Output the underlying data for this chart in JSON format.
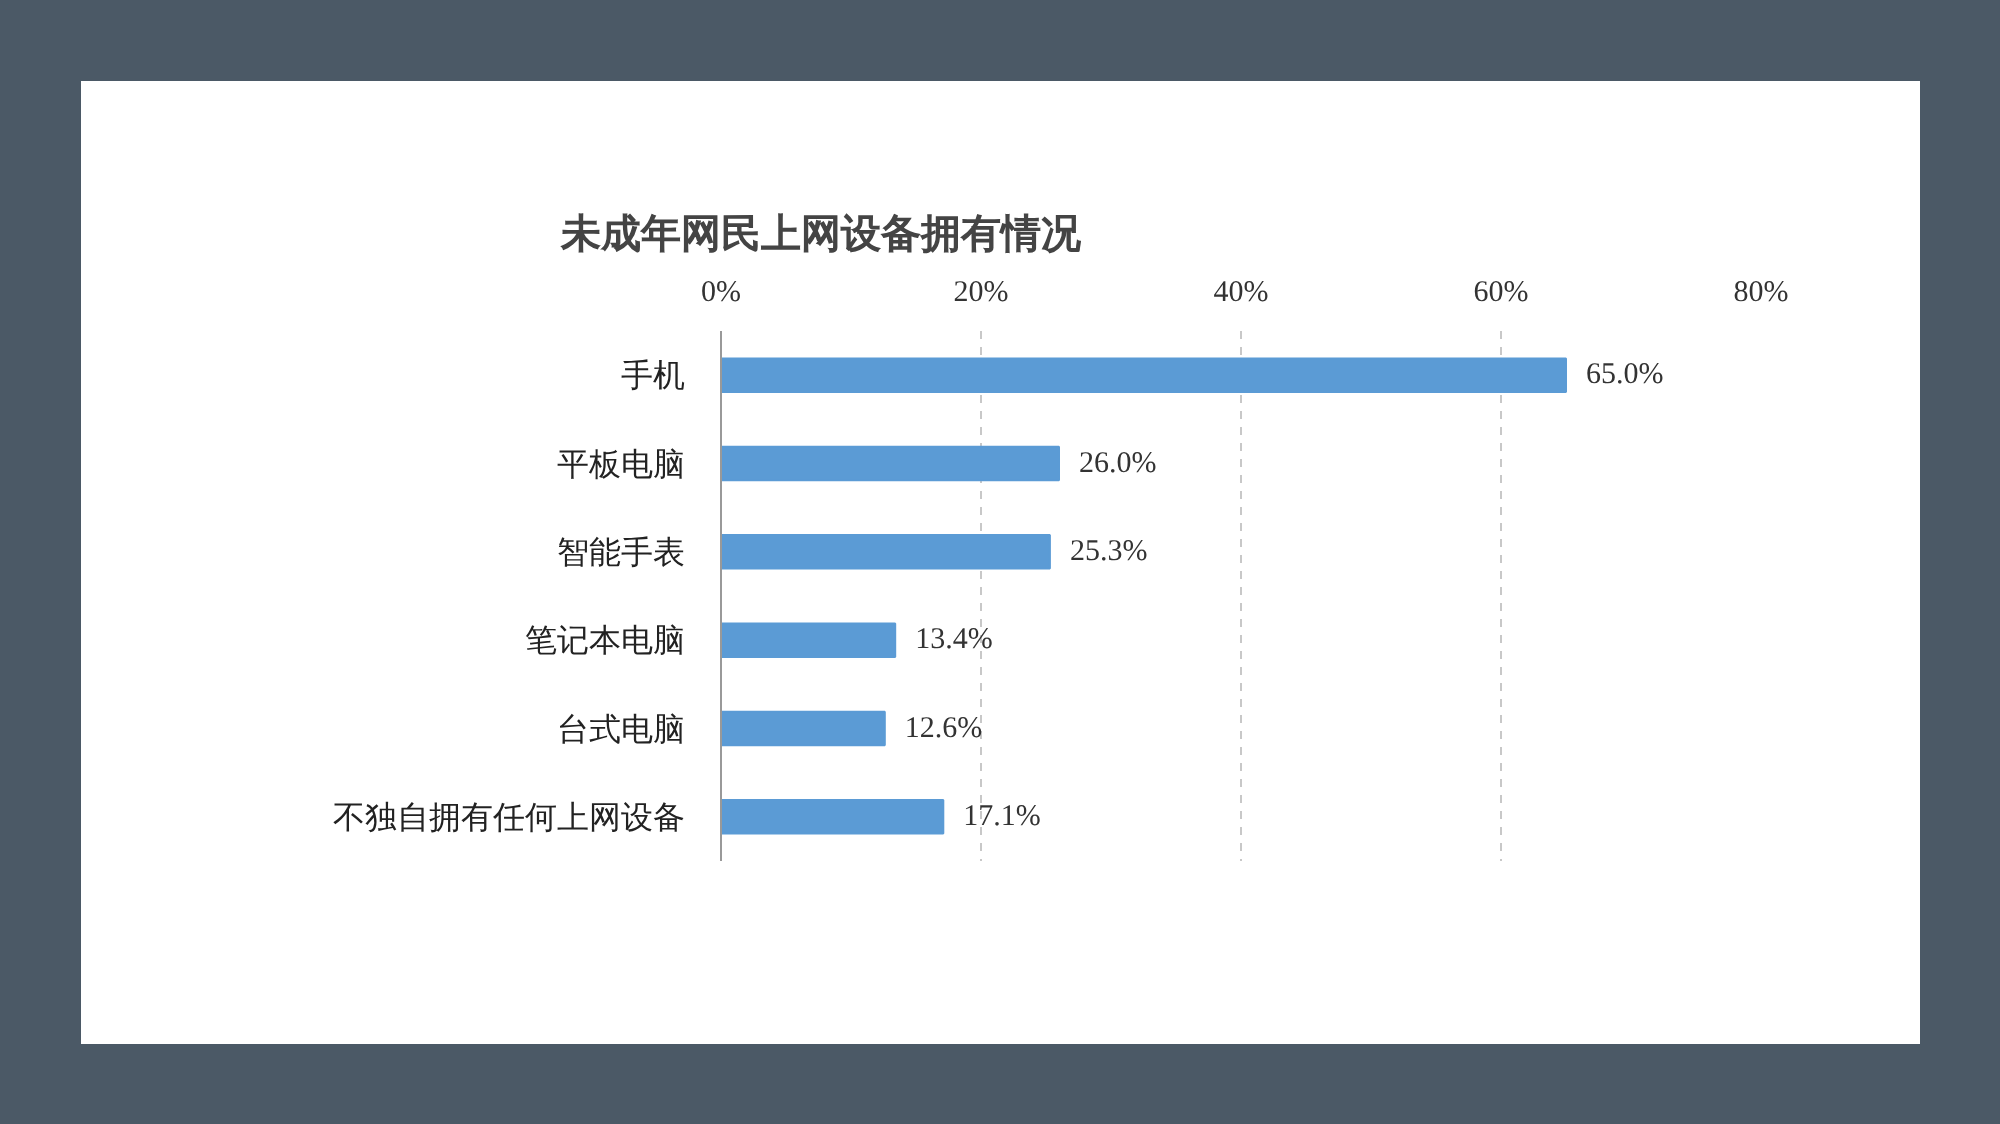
{
  "chart_data": {
    "type": "bar",
    "orientation": "horizontal",
    "title": "未成年网民上网设备拥有情况",
    "categories": [
      "手机",
      "平板电脑",
      "智能手表",
      "笔记本电脑",
      "台式电脑",
      "不独自拥有任何上网设备"
    ],
    "values": [
      65.0,
      26.0,
      25.3,
      13.4,
      12.6,
      17.1
    ],
    "value_labels": [
      "65.0%",
      "26.0%",
      "25.3%",
      "13.4%",
      "12.6%",
      "17.1%"
    ],
    "color": "#5b9bd5",
    "xlim": [
      0,
      80
    ],
    "xticks": [
      {
        "value": 0,
        "label": "0%"
      },
      {
        "value": 20,
        "label": "20%"
      },
      {
        "value": 40,
        "label": "40%"
      },
      {
        "value": 60,
        "label": "60%"
      },
      {
        "value": 80,
        "label": "80%"
      }
    ],
    "grid": "x"
  }
}
